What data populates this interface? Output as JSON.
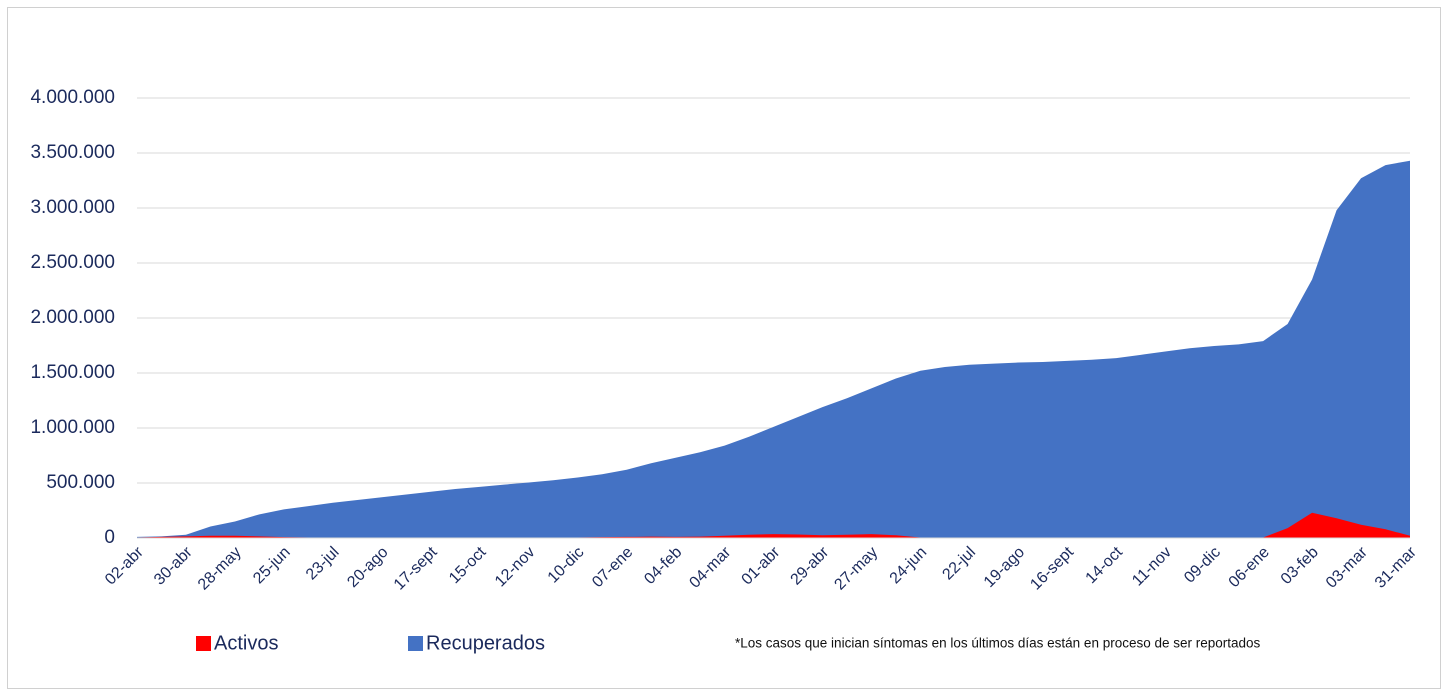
{
  "chart_data": {
    "type": "area",
    "categories": [
      "02-abr",
      null,
      "30-abr",
      null,
      "28-may",
      null,
      "25-jun",
      null,
      "23-jul",
      null,
      "20-ago",
      null,
      "17-sept",
      null,
      "15-oct",
      null,
      "12-nov",
      null,
      "10-dic",
      null,
      "07-ene",
      null,
      "04-feb",
      null,
      "04-mar",
      null,
      "01-abr",
      null,
      "29-abr",
      null,
      "27-may",
      null,
      "24-jun",
      null,
      "22-jul",
      null,
      "19-ago",
      null,
      "16-sept",
      null,
      "14-oct",
      null,
      "11-nov",
      null,
      "09-dic",
      null,
      "06-ene",
      null,
      "03-feb",
      null,
      "03-mar",
      null,
      "31-mar"
    ],
    "series": [
      {
        "name": "Activos",
        "color": "#ff0000",
        "values": [
          5000,
          10000,
          15000,
          20000,
          20000,
          15000,
          8000,
          5000,
          5000,
          5000,
          5000,
          5000,
          5000,
          5000,
          5000,
          5000,
          5000,
          5000,
          5000,
          8000,
          10000,
          12000,
          10000,
          12000,
          20000,
          30000,
          35000,
          32000,
          25000,
          30000,
          35000,
          25000,
          5000,
          3000,
          3000,
          3000,
          3000,
          3000,
          3000,
          3000,
          3000,
          3000,
          3000,
          3000,
          3000,
          3000,
          5000,
          90000,
          230000,
          180000,
          120000,
          80000,
          20000
        ]
      },
      {
        "name": "Recuperados",
        "color": "#4472c4",
        "values": [
          10000,
          15000,
          30000,
          105000,
          150000,
          215000,
          260000,
          290000,
          320000,
          345000,
          370000,
          395000,
          420000,
          445000,
          465000,
          485000,
          505000,
          525000,
          550000,
          580000,
          620000,
          680000,
          730000,
          780000,
          840000,
          920000,
          1010000,
          1100000,
          1190000,
          1270000,
          1360000,
          1450000,
          1520000,
          1555000,
          1575000,
          1585000,
          1595000,
          1600000,
          1610000,
          1620000,
          1635000,
          1665000,
          1695000,
          1725000,
          1745000,
          1760000,
          1790000,
          1945000,
          2350000,
          2980000,
          3270000,
          3390000,
          3430000
        ]
      }
    ],
    "ylim": [
      0,
      4000000
    ],
    "yticks": [
      0,
      {
        "value": 500000,
        "label": "500.000"
      },
      {
        "value": 1000000,
        "label": "1.000.000"
      },
      {
        "value": 1500000,
        "label": "1.500.000"
      },
      {
        "value": 2000000,
        "label": "2.000.000"
      },
      {
        "value": 2500000,
        "label": "2.500.000"
      },
      {
        "value": 3000000,
        "label": "3.000.000"
      },
      {
        "value": 3500000,
        "label": "3.500.000"
      },
      {
        "value": 4000000,
        "label": "4.000.000"
      }
    ],
    "grid": true,
    "legend": "bottom",
    "note": "*Los casos que inician síntomas en los últimos días están en proceso de ser reportados"
  }
}
